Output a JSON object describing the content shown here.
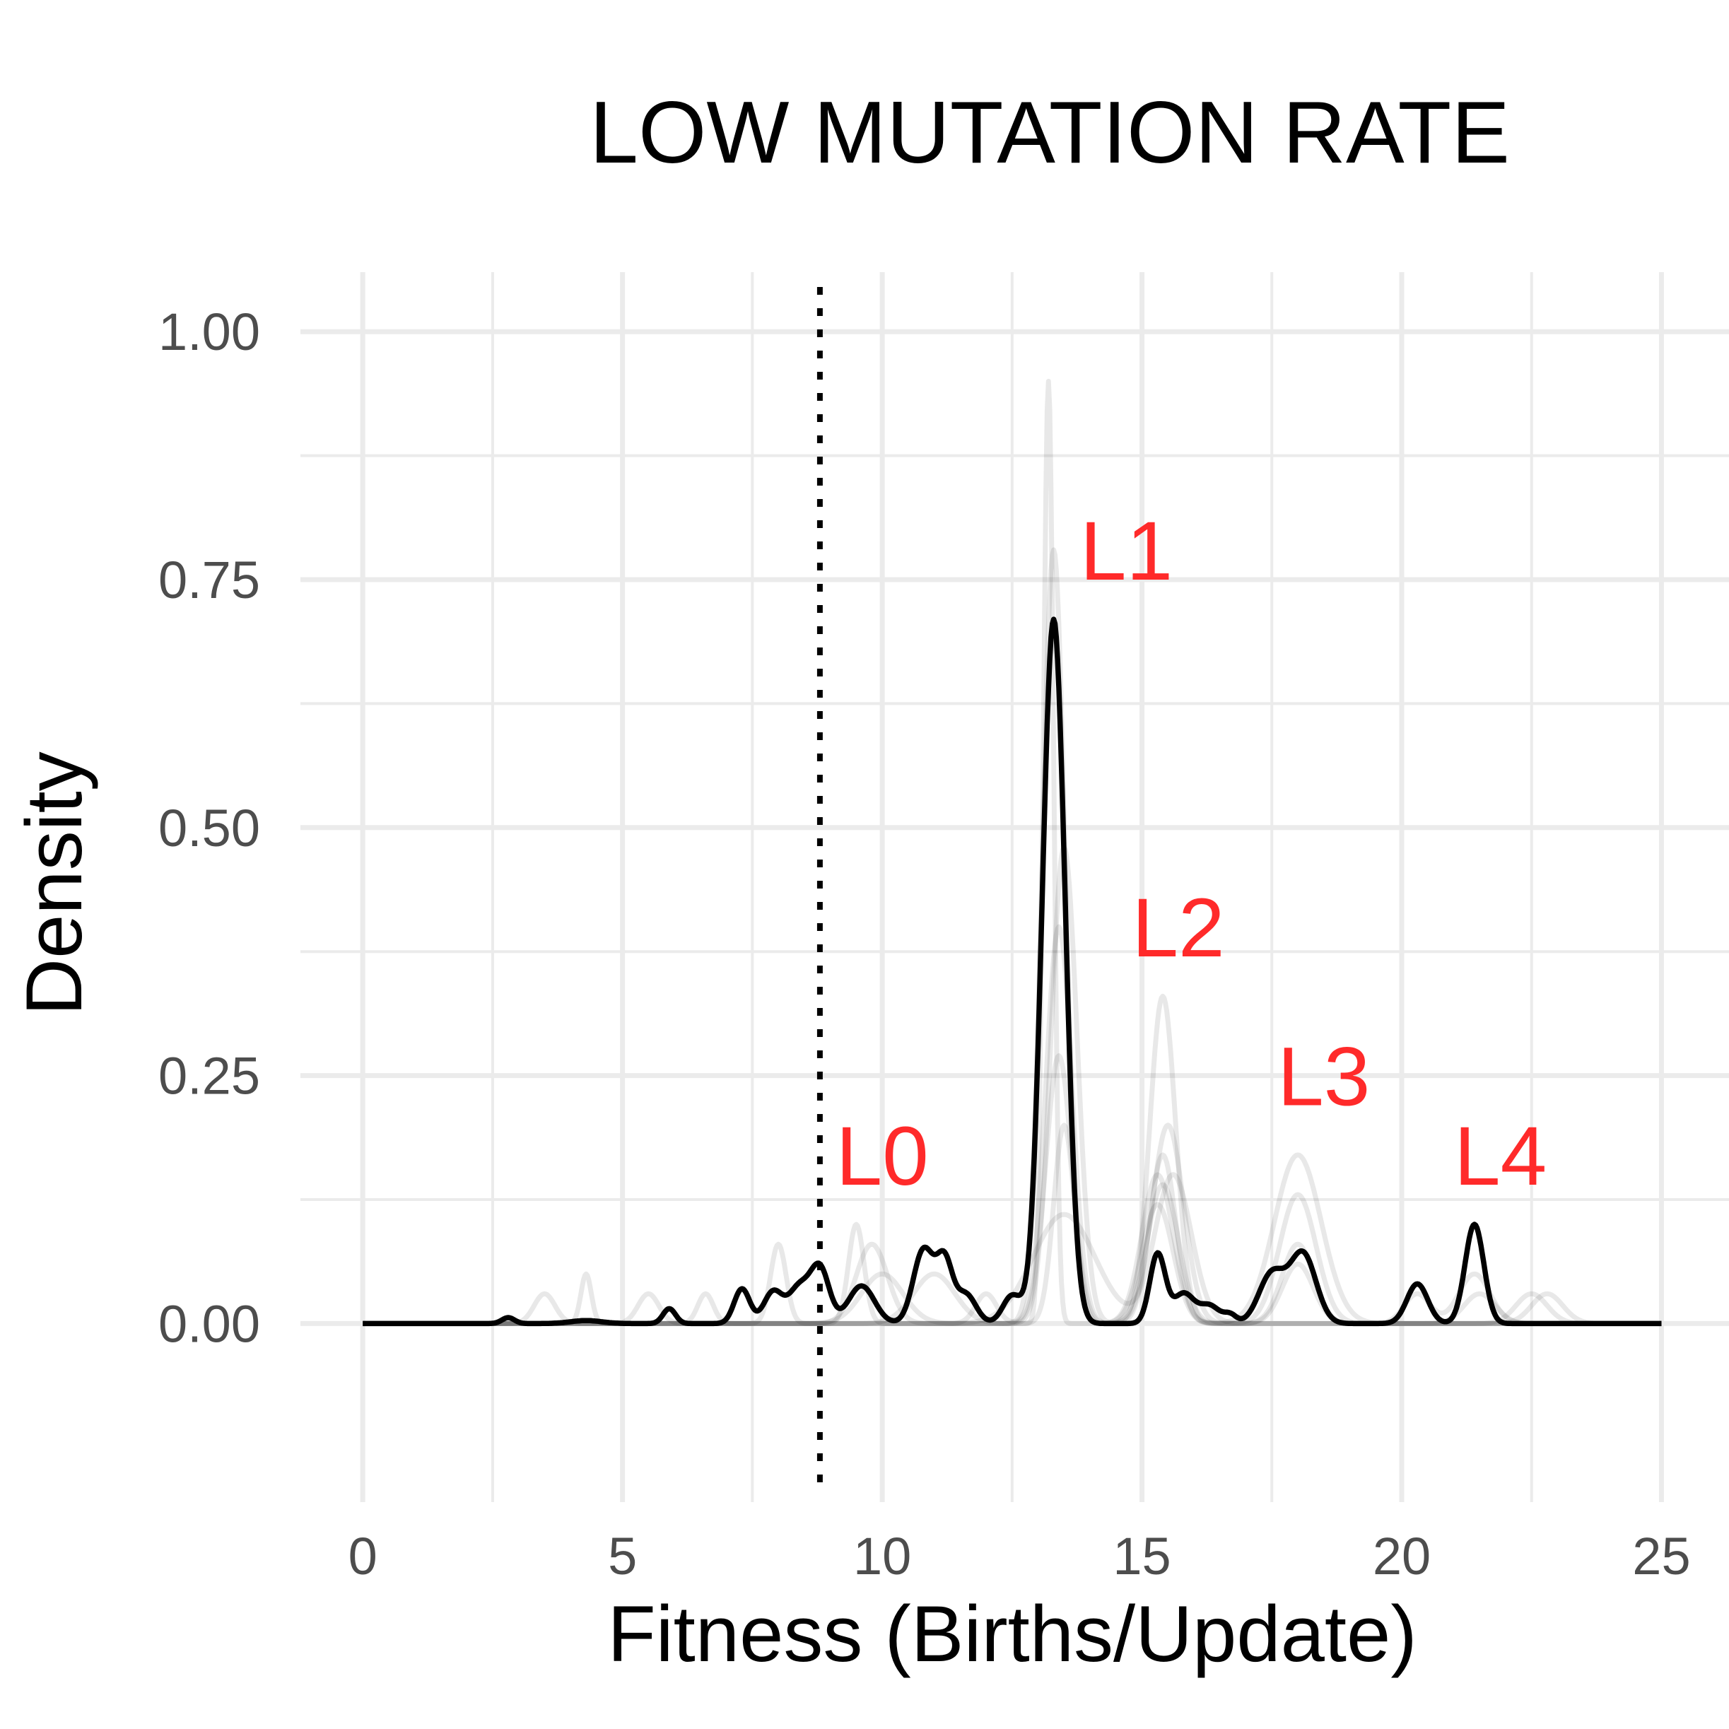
{
  "chart_data": {
    "type": "line",
    "title": "LOW MUTATION RATE",
    "xlabel": "Fitness (Births/Update)",
    "ylabel": "Density",
    "xlim": [
      -1.2,
      26.3
    ],
    "ylim": [
      -0.18,
      1.06
    ],
    "x_ticks": [
      0,
      5,
      10,
      15,
      20,
      25
    ],
    "x_tick_labels": [
      "0",
      "5",
      "10",
      "15",
      "20",
      "25"
    ],
    "y_ticks": [
      0,
      0.25,
      0.5,
      0.75,
      1.0
    ],
    "y_tick_labels": [
      "0.00",
      "0.25",
      "0.50",
      "0.75",
      "1.00"
    ],
    "grid": true,
    "legend": "none",
    "reference_line": {
      "x": 8.8,
      "style": "dotted",
      "color": "#000000"
    },
    "annotations": [
      {
        "text": "L0",
        "x": 10.0,
        "y": 0.14,
        "color": "#ff2a2a"
      },
      {
        "text": "L1",
        "x": 14.7,
        "y": 0.75,
        "color": "#ff2a2a"
      },
      {
        "text": "L2",
        "x": 15.7,
        "y": 0.37,
        "color": "#ff2a2a"
      },
      {
        "text": "L3",
        "x": 18.5,
        "y": 0.22,
        "color": "#ff2a2a"
      },
      {
        "text": "L4",
        "x": 21.9,
        "y": 0.14,
        "color": "#ff2a2a"
      }
    ],
    "peaks": {
      "main_series": [
        {
          "x": 2.8,
          "h": 0.006,
          "w": 0.12
        },
        {
          "x": 4.3,
          "h": 0.003,
          "w": 0.3
        },
        {
          "x": 5.9,
          "h": 0.015,
          "w": 0.12
        },
        {
          "x": 7.3,
          "h": 0.035,
          "w": 0.15
        },
        {
          "x": 7.9,
          "h": 0.032,
          "w": 0.18
        },
        {
          "x": 8.4,
          "h": 0.036,
          "w": 0.2
        },
        {
          "x": 8.8,
          "h": 0.055,
          "w": 0.18
        },
        {
          "x": 9.6,
          "h": 0.038,
          "w": 0.25
        },
        {
          "x": 10.8,
          "h": 0.075,
          "w": 0.2
        },
        {
          "x": 11.2,
          "h": 0.058,
          "w": 0.15
        },
        {
          "x": 11.6,
          "h": 0.03,
          "w": 0.2
        },
        {
          "x": 12.5,
          "h": 0.028,
          "w": 0.18
        },
        {
          "x": 13.3,
          "h": 0.71,
          "w": 0.22
        },
        {
          "x": 15.3,
          "h": 0.07,
          "w": 0.15
        },
        {
          "x": 15.8,
          "h": 0.03,
          "w": 0.2
        },
        {
          "x": 16.3,
          "h": 0.018,
          "w": 0.2
        },
        {
          "x": 16.7,
          "h": 0.008,
          "w": 0.12
        },
        {
          "x": 17.5,
          "h": 0.05,
          "w": 0.25
        },
        {
          "x": 18.1,
          "h": 0.07,
          "w": 0.25
        },
        {
          "x": 20.3,
          "h": 0.04,
          "w": 0.2
        },
        {
          "x": 21.4,
          "h": 0.1,
          "w": 0.18
        }
      ],
      "replicate_series": [
        [
          {
            "x": 13.2,
            "h": 0.95,
            "w": 0.1
          },
          {
            "x": 15.3,
            "h": 0.15,
            "w": 0.3
          },
          {
            "x": 18.0,
            "h": 0.06,
            "w": 0.3
          },
          {
            "x": 10.0,
            "h": 0.05,
            "w": 0.4
          },
          {
            "x": 21.5,
            "h": 0.03,
            "w": 0.3
          }
        ],
        [
          {
            "x": 13.3,
            "h": 0.78,
            "w": 0.22
          },
          {
            "x": 15.4,
            "h": 0.17,
            "w": 0.25
          },
          {
            "x": 9.5,
            "h": 0.1,
            "w": 0.15
          },
          {
            "x": 18.0,
            "h": 0.08,
            "w": 0.3
          }
        ],
        [
          {
            "x": 13.5,
            "h": 0.48,
            "w": 0.25
          },
          {
            "x": 15.5,
            "h": 0.2,
            "w": 0.3
          },
          {
            "x": 18.0,
            "h": 0.13,
            "w": 0.35
          },
          {
            "x": 4.3,
            "h": 0.05,
            "w": 0.1
          },
          {
            "x": 22.5,
            "h": 0.03,
            "w": 0.3
          }
        ],
        [
          {
            "x": 13.4,
            "h": 0.27,
            "w": 0.25
          },
          {
            "x": 15.4,
            "h": 0.33,
            "w": 0.25
          },
          {
            "x": 18.0,
            "h": 0.17,
            "w": 0.45
          },
          {
            "x": 11.0,
            "h": 0.05,
            "w": 0.4
          }
        ],
        [
          {
            "x": 13.5,
            "h": 0.2,
            "w": 0.2
          },
          {
            "x": 15.3,
            "h": 0.12,
            "w": 0.3
          },
          {
            "x": 8.0,
            "h": 0.08,
            "w": 0.15
          },
          {
            "x": 3.5,
            "h": 0.03,
            "w": 0.2
          },
          {
            "x": 6.6,
            "h": 0.03,
            "w": 0.15
          }
        ],
        [
          {
            "x": 13.5,
            "h": 0.11,
            "w": 0.6
          },
          {
            "x": 15.6,
            "h": 0.15,
            "w": 0.35
          },
          {
            "x": 9.8,
            "h": 0.08,
            "w": 0.3
          },
          {
            "x": 22.8,
            "h": 0.03,
            "w": 0.3
          },
          {
            "x": 5.5,
            "h": 0.03,
            "w": 0.2
          }
        ],
        [
          {
            "x": 13.4,
            "h": 0.4,
            "w": 0.25
          },
          {
            "x": 15.4,
            "h": 0.14,
            "w": 0.3
          },
          {
            "x": 20.3,
            "h": 0.03,
            "w": 0.25
          },
          {
            "x": 21.4,
            "h": 0.05,
            "w": 0.3
          },
          {
            "x": 12.0,
            "h": 0.03,
            "w": 0.2
          }
        ]
      ]
    }
  }
}
